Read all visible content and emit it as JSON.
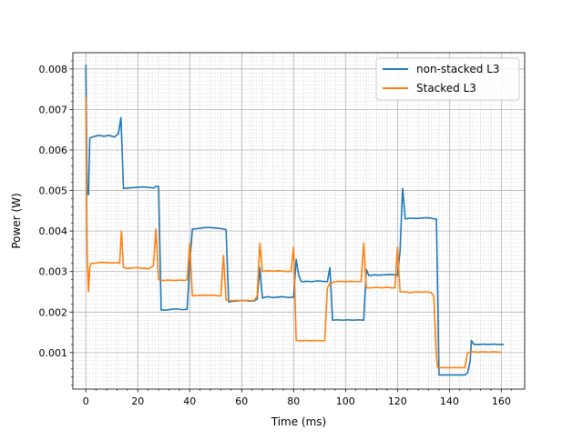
{
  "chart_data": {
    "type": "line",
    "title": "",
    "xlabel": "Time (ms)",
    "ylabel": "Power (W)",
    "xlim": [
      -5,
      169
    ],
    "ylim": [
      0.0001,
      0.0084
    ],
    "x_ticks": [
      0,
      20,
      40,
      60,
      80,
      100,
      120,
      140,
      160
    ],
    "x_tick_labels": [
      "0",
      "20",
      "40",
      "60",
      "80",
      "100",
      "120",
      "140",
      "160"
    ],
    "y_ticks": [
      0.001,
      0.002,
      0.003,
      0.004,
      0.005,
      0.006,
      0.007,
      0.008
    ],
    "y_tick_labels": [
      "0.001",
      "0.002",
      "0.003",
      "0.004",
      "0.005",
      "0.006",
      "0.007",
      "0.008"
    ],
    "grid": true,
    "minor_grid": true,
    "legend_position": "top-right",
    "series": [
      {
        "name": "non-stacked L3",
        "color": "#1f77b4",
        "points": [
          [
            0,
            0.0081
          ],
          [
            0.5,
            0.0049
          ],
          [
            1,
            0.0049
          ],
          [
            1.5,
            0.0063
          ],
          [
            3,
            0.00633
          ],
          [
            5,
            0.00636
          ],
          [
            7,
            0.00634
          ],
          [
            9,
            0.00636
          ],
          [
            11,
            0.00632
          ],
          [
            12.5,
            0.0064
          ],
          [
            13.5,
            0.0068
          ],
          [
            14.5,
            0.00505
          ],
          [
            16,
            0.00506
          ],
          [
            18,
            0.00507
          ],
          [
            20,
            0.00508
          ],
          [
            22,
            0.00509
          ],
          [
            24,
            0.00508
          ],
          [
            26,
            0.00506
          ],
          [
            27,
            0.0051
          ],
          [
            28,
            0.0051
          ],
          [
            29,
            0.00205
          ],
          [
            31,
            0.00205
          ],
          [
            33,
            0.00207
          ],
          [
            35,
            0.00208
          ],
          [
            37,
            0.00206
          ],
          [
            39,
            0.00207
          ],
          [
            40,
            0.0032
          ],
          [
            41,
            0.00405
          ],
          [
            43,
            0.00406
          ],
          [
            45,
            0.00408
          ],
          [
            47,
            0.00409
          ],
          [
            49,
            0.00408
          ],
          [
            51,
            0.00407
          ],
          [
            53,
            0.00405
          ],
          [
            54,
            0.00404
          ],
          [
            55,
            0.00225
          ],
          [
            57,
            0.00227
          ],
          [
            59,
            0.00228
          ],
          [
            61,
            0.00229
          ],
          [
            63,
            0.00227
          ],
          [
            65,
            0.00228
          ],
          [
            66,
            0.00232
          ],
          [
            67,
            0.0031
          ],
          [
            68,
            0.00235
          ],
          [
            70,
            0.00238
          ],
          [
            72,
            0.00236
          ],
          [
            74,
            0.00237
          ],
          [
            76,
            0.00238
          ],
          [
            78,
            0.00236
          ],
          [
            80,
            0.00237
          ],
          [
            81,
            0.0033
          ],
          [
            82,
            0.0029
          ],
          [
            83,
            0.00275
          ],
          [
            85,
            0.00276
          ],
          [
            87,
            0.00275
          ],
          [
            89,
            0.00277
          ],
          [
            91,
            0.00276
          ],
          [
            93,
            0.00275
          ],
          [
            94,
            0.0031
          ],
          [
            95,
            0.0018
          ],
          [
            97,
            0.00181
          ],
          [
            99,
            0.0018
          ],
          [
            101,
            0.00181
          ],
          [
            103,
            0.0018
          ],
          [
            105,
            0.00181
          ],
          [
            107,
            0.0018
          ],
          [
            108,
            0.00305
          ],
          [
            109,
            0.0029
          ],
          [
            111,
            0.00292
          ],
          [
            113,
            0.00291
          ],
          [
            115,
            0.00292
          ],
          [
            117,
            0.00293
          ],
          [
            119,
            0.00292
          ],
          [
            120,
            0.0029
          ],
          [
            121,
            0.0035
          ],
          [
            122,
            0.00505
          ],
          [
            123,
            0.0043
          ],
          [
            125,
            0.00432
          ],
          [
            127,
            0.00431
          ],
          [
            129,
            0.00432
          ],
          [
            131,
            0.00433
          ],
          [
            133,
            0.00432
          ],
          [
            134,
            0.0043
          ],
          [
            135,
            0.0043
          ],
          [
            136,
            0.00045
          ],
          [
            138,
            0.00045
          ],
          [
            140,
            0.00045
          ],
          [
            142,
            0.00045
          ],
          [
            144,
            0.00045
          ],
          [
            146,
            0.00045
          ],
          [
            147,
            0.0005
          ],
          [
            148,
            0.0008
          ],
          [
            148.5,
            0.0013
          ],
          [
            149.5,
            0.0012
          ],
          [
            151,
            0.0012
          ],
          [
            153,
            0.00121
          ],
          [
            155,
            0.0012
          ],
          [
            157,
            0.00121
          ],
          [
            159,
            0.0012
          ],
          [
            160,
            0.0012
          ],
          [
            161,
            0.0012
          ]
        ]
      },
      {
        "name": "Stacked L3",
        "color": "#ff7f0e",
        "points": [
          [
            0,
            0.0073
          ],
          [
            0.5,
            0.0035
          ],
          [
            1,
            0.0025
          ],
          [
            1.5,
            0.0031
          ],
          [
            2,
            0.0032
          ],
          [
            4,
            0.00321
          ],
          [
            6,
            0.00323
          ],
          [
            8,
            0.00322
          ],
          [
            10,
            0.00321
          ],
          [
            12,
            0.00322
          ],
          [
            13,
            0.0032
          ],
          [
            13.7,
            0.004
          ],
          [
            14.5,
            0.0031
          ],
          [
            16,
            0.00308
          ],
          [
            18,
            0.00309
          ],
          [
            20,
            0.0031
          ],
          [
            22,
            0.00308
          ],
          [
            24,
            0.00307
          ],
          [
            25,
            0.0031
          ],
          [
            26,
            0.00315
          ],
          [
            27,
            0.00405
          ],
          [
            28,
            0.0028
          ],
          [
            30,
            0.00278
          ],
          [
            32,
            0.00279
          ],
          [
            34,
            0.00278
          ],
          [
            36,
            0.00279
          ],
          [
            38,
            0.00278
          ],
          [
            39,
            0.0028
          ],
          [
            40,
            0.0037
          ],
          [
            41,
            0.0024
          ],
          [
            43,
            0.00241
          ],
          [
            45,
            0.00242
          ],
          [
            47,
            0.00241
          ],
          [
            49,
            0.00242
          ],
          [
            51,
            0.0024
          ],
          [
            52,
            0.0024
          ],
          [
            53,
            0.0034
          ],
          [
            54,
            0.0023
          ],
          [
            56,
            0.00228
          ],
          [
            58,
            0.00229
          ],
          [
            60,
            0.00228
          ],
          [
            62,
            0.00229
          ],
          [
            64,
            0.00228
          ],
          [
            65,
            0.0023
          ],
          [
            66,
            0.0024
          ],
          [
            67,
            0.0037
          ],
          [
            68,
            0.003
          ],
          [
            70,
            0.00302
          ],
          [
            72,
            0.00301
          ],
          [
            74,
            0.00302
          ],
          [
            76,
            0.00301
          ],
          [
            78,
            0.003
          ],
          [
            79,
            0.003
          ],
          [
            80,
            0.0036
          ],
          [
            81,
            0.0013
          ],
          [
            83,
            0.00129
          ],
          [
            85,
            0.0013
          ],
          [
            87,
            0.00129
          ],
          [
            89,
            0.0013
          ],
          [
            91,
            0.00129
          ],
          [
            92,
            0.0013
          ],
          [
            93,
            0.0026
          ],
          [
            94,
            0.0027
          ],
          [
            96,
            0.00275
          ],
          [
            98,
            0.00276
          ],
          [
            100,
            0.00275
          ],
          [
            102,
            0.00276
          ],
          [
            104,
            0.00275
          ],
          [
            106,
            0.00275
          ],
          [
            107,
            0.0037
          ],
          [
            108,
            0.0026
          ],
          [
            110,
            0.0026
          ],
          [
            112,
            0.00261
          ],
          [
            114,
            0.0026
          ],
          [
            116,
            0.00261
          ],
          [
            118,
            0.0026
          ],
          [
            119,
            0.0026
          ],
          [
            120,
            0.0036
          ],
          [
            121,
            0.0025
          ],
          [
            123,
            0.0025
          ],
          [
            125,
            0.00248
          ],
          [
            127,
            0.0025
          ],
          [
            129,
            0.00249
          ],
          [
            131,
            0.0025
          ],
          [
            133,
            0.00248
          ],
          [
            134,
            0.0024
          ],
          [
            135,
            0.0009
          ],
          [
            135.5,
            0.00063
          ],
          [
            137,
            0.00063
          ],
          [
            139,
            0.00063
          ],
          [
            141,
            0.00063
          ],
          [
            143,
            0.00063
          ],
          [
            145,
            0.00063
          ],
          [
            146,
            0.00063
          ],
          [
            147,
            0.001
          ],
          [
            149,
            0.00102
          ],
          [
            151,
            0.00101
          ],
          [
            153,
            0.00102
          ],
          [
            155,
            0.00101
          ],
          [
            157,
            0.00102
          ],
          [
            159,
            0.00101
          ],
          [
            160,
            0.00101
          ]
        ]
      }
    ]
  }
}
